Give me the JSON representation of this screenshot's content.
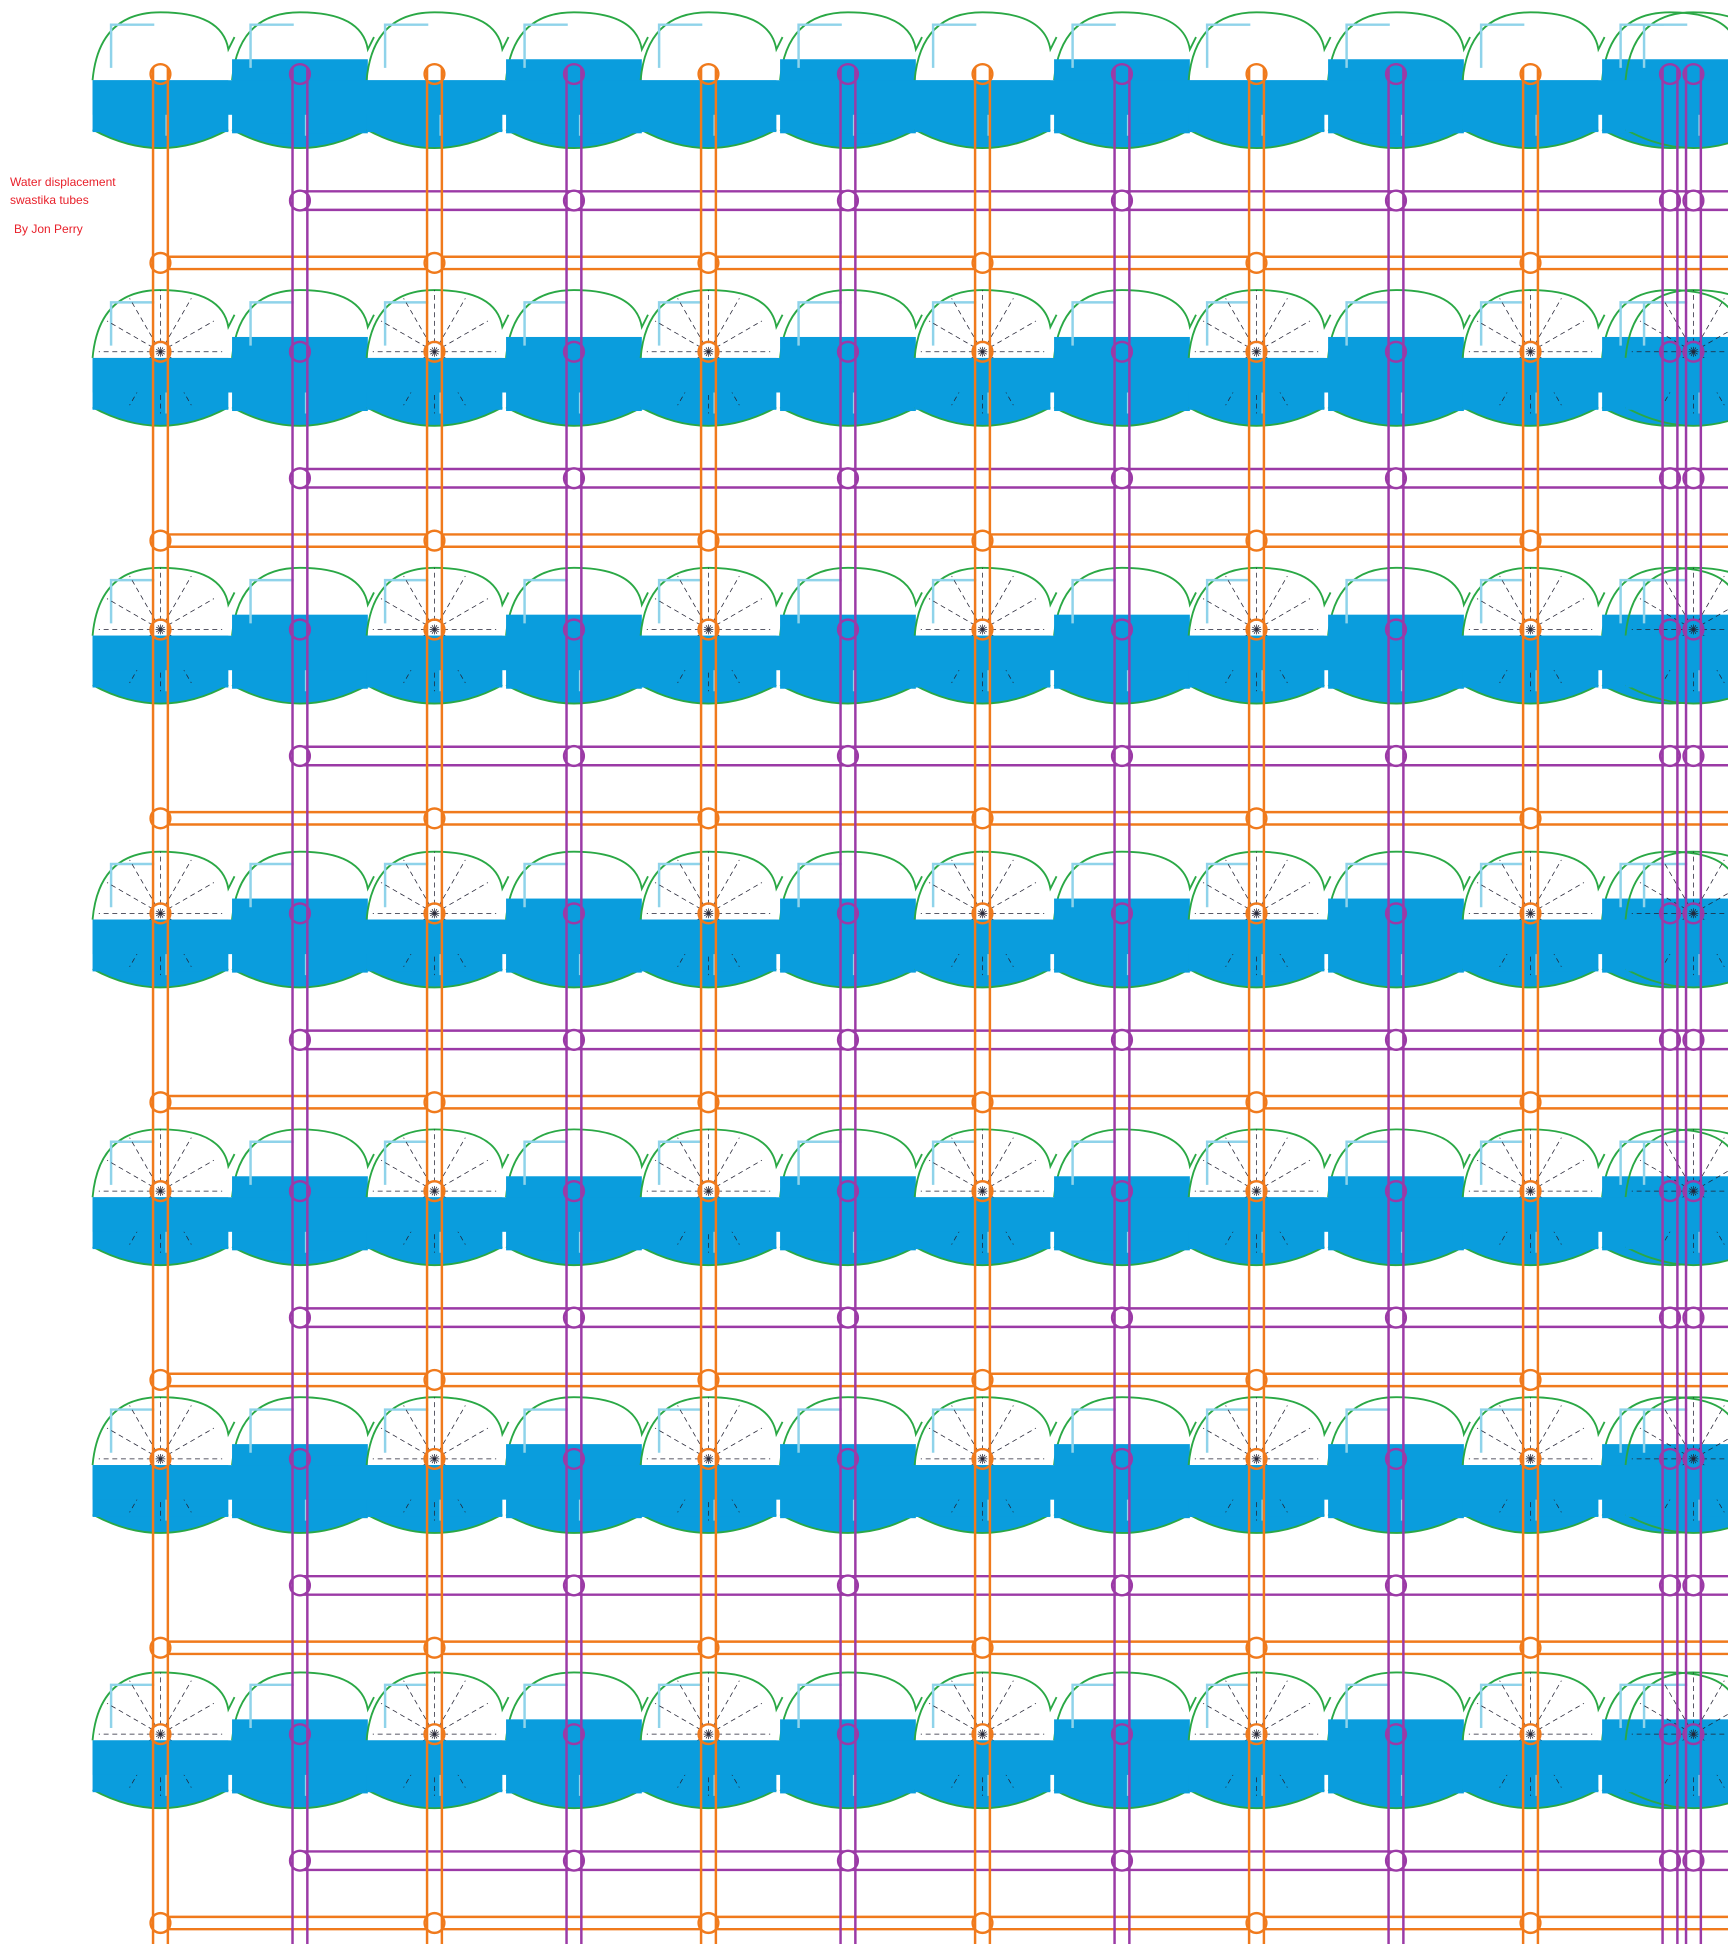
{
  "title_line_1": "Water displacement",
  "title_line_2": "swastika tubes",
  "author": "By Jon Perry"
}
